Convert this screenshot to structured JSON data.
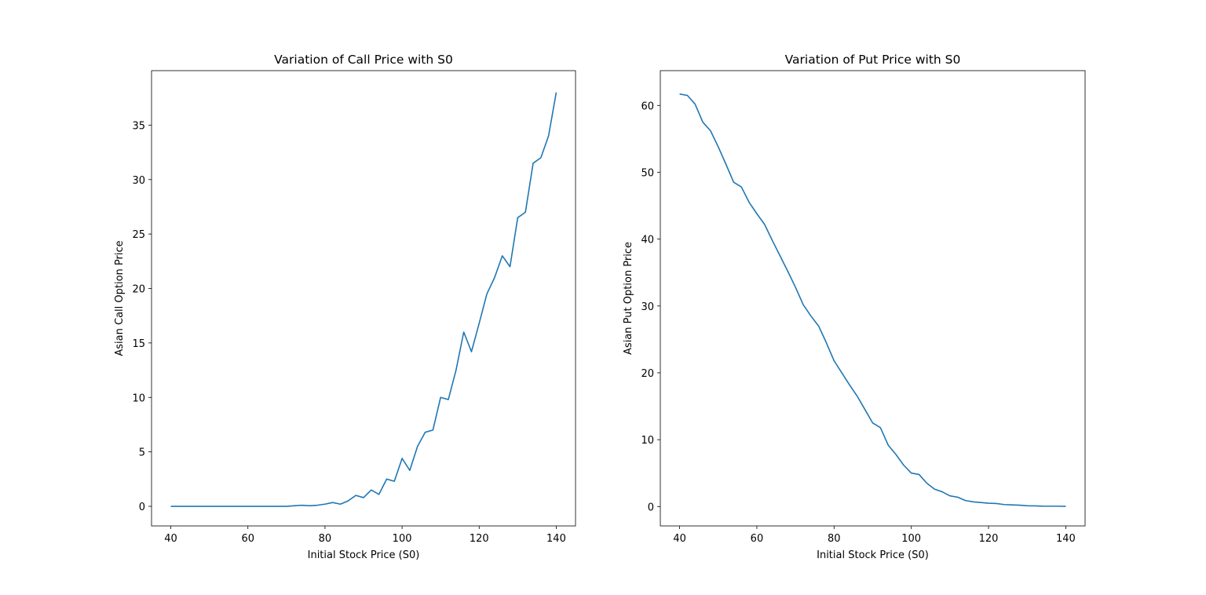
{
  "chart_data": [
    {
      "type": "line",
      "title": "Variation of Call Price with S0",
      "x_label": "Initial Stock Price (S0)",
      "y_label": "Asian Call Option Price",
      "x": [
        40,
        42,
        44,
        46,
        48,
        50,
        52,
        54,
        56,
        58,
        60,
        62,
        64,
        66,
        68,
        70,
        72,
        74,
        76,
        78,
        80,
        82,
        84,
        86,
        88,
        90,
        92,
        94,
        96,
        98,
        100,
        102,
        104,
        106,
        108,
        110,
        112,
        114,
        116,
        118,
        120,
        122,
        124,
        126,
        128,
        130,
        132,
        134,
        136,
        138,
        140
      ],
      "values": [
        0,
        0,
        0,
        0,
        0,
        0,
        0,
        0,
        0,
        0,
        0,
        0,
        0,
        0,
        0,
        0,
        0.05,
        0.1,
        0.05,
        0.1,
        0.2,
        0.35,
        0.2,
        0.5,
        1.0,
        0.8,
        1.5,
        1.1,
        2.5,
        2.3,
        4.4,
        3.3,
        5.5,
        6.8,
        7.0,
        10.0,
        9.8,
        12.5,
        16.0,
        14.2,
        16.8,
        19.5,
        21.0,
        23.0,
        22.0,
        26.5,
        27.0,
        31.5,
        32.0,
        34.0,
        38.0
      ],
      "color": "#1f77b4",
      "xlim": [
        35,
        145
      ],
      "ylim": [
        -1.8,
        40
      ],
      "xticks": [
        40,
        60,
        80,
        100,
        120,
        140
      ],
      "yticks": [
        0,
        5,
        10,
        15,
        20,
        25,
        30,
        35
      ]
    },
    {
      "type": "line",
      "title": "Variation of Put Price with S0",
      "x_label": "Initial Stock Price (S0)",
      "y_label": "Asian Put Option Price",
      "x": [
        40,
        42,
        44,
        46,
        48,
        50,
        52,
        54,
        56,
        58,
        60,
        62,
        64,
        66,
        68,
        70,
        72,
        74,
        76,
        78,
        80,
        82,
        84,
        86,
        88,
        90,
        92,
        94,
        96,
        98,
        100,
        102,
        104,
        106,
        108,
        110,
        112,
        114,
        116,
        118,
        120,
        122,
        124,
        126,
        128,
        130,
        132,
        134,
        136,
        138,
        140
      ],
      "values": [
        61.7,
        61.5,
        60.2,
        57.5,
        56.2,
        53.8,
        51.2,
        48.5,
        47.8,
        45.5,
        43.8,
        42.2,
        39.8,
        37.5,
        35.2,
        32.8,
        30.2,
        28.5,
        27.0,
        24.5,
        21.8,
        20.0,
        18.2,
        16.5,
        14.5,
        12.5,
        11.8,
        9.2,
        7.8,
        6.2,
        5.0,
        4.8,
        3.5,
        2.6,
        2.2,
        1.6,
        1.4,
        0.9,
        0.7,
        0.6,
        0.5,
        0.45,
        0.3,
        0.25,
        0.2,
        0.12,
        0.1,
        0.06,
        0.05,
        0.05,
        0.03
      ],
      "color": "#1f77b4",
      "xlim": [
        35,
        145
      ],
      "ylim": [
        -2.9,
        65.2
      ],
      "xticks": [
        40,
        60,
        80,
        100,
        120,
        140
      ],
      "yticks": [
        0,
        10,
        20,
        30,
        40,
        50,
        60
      ]
    }
  ]
}
